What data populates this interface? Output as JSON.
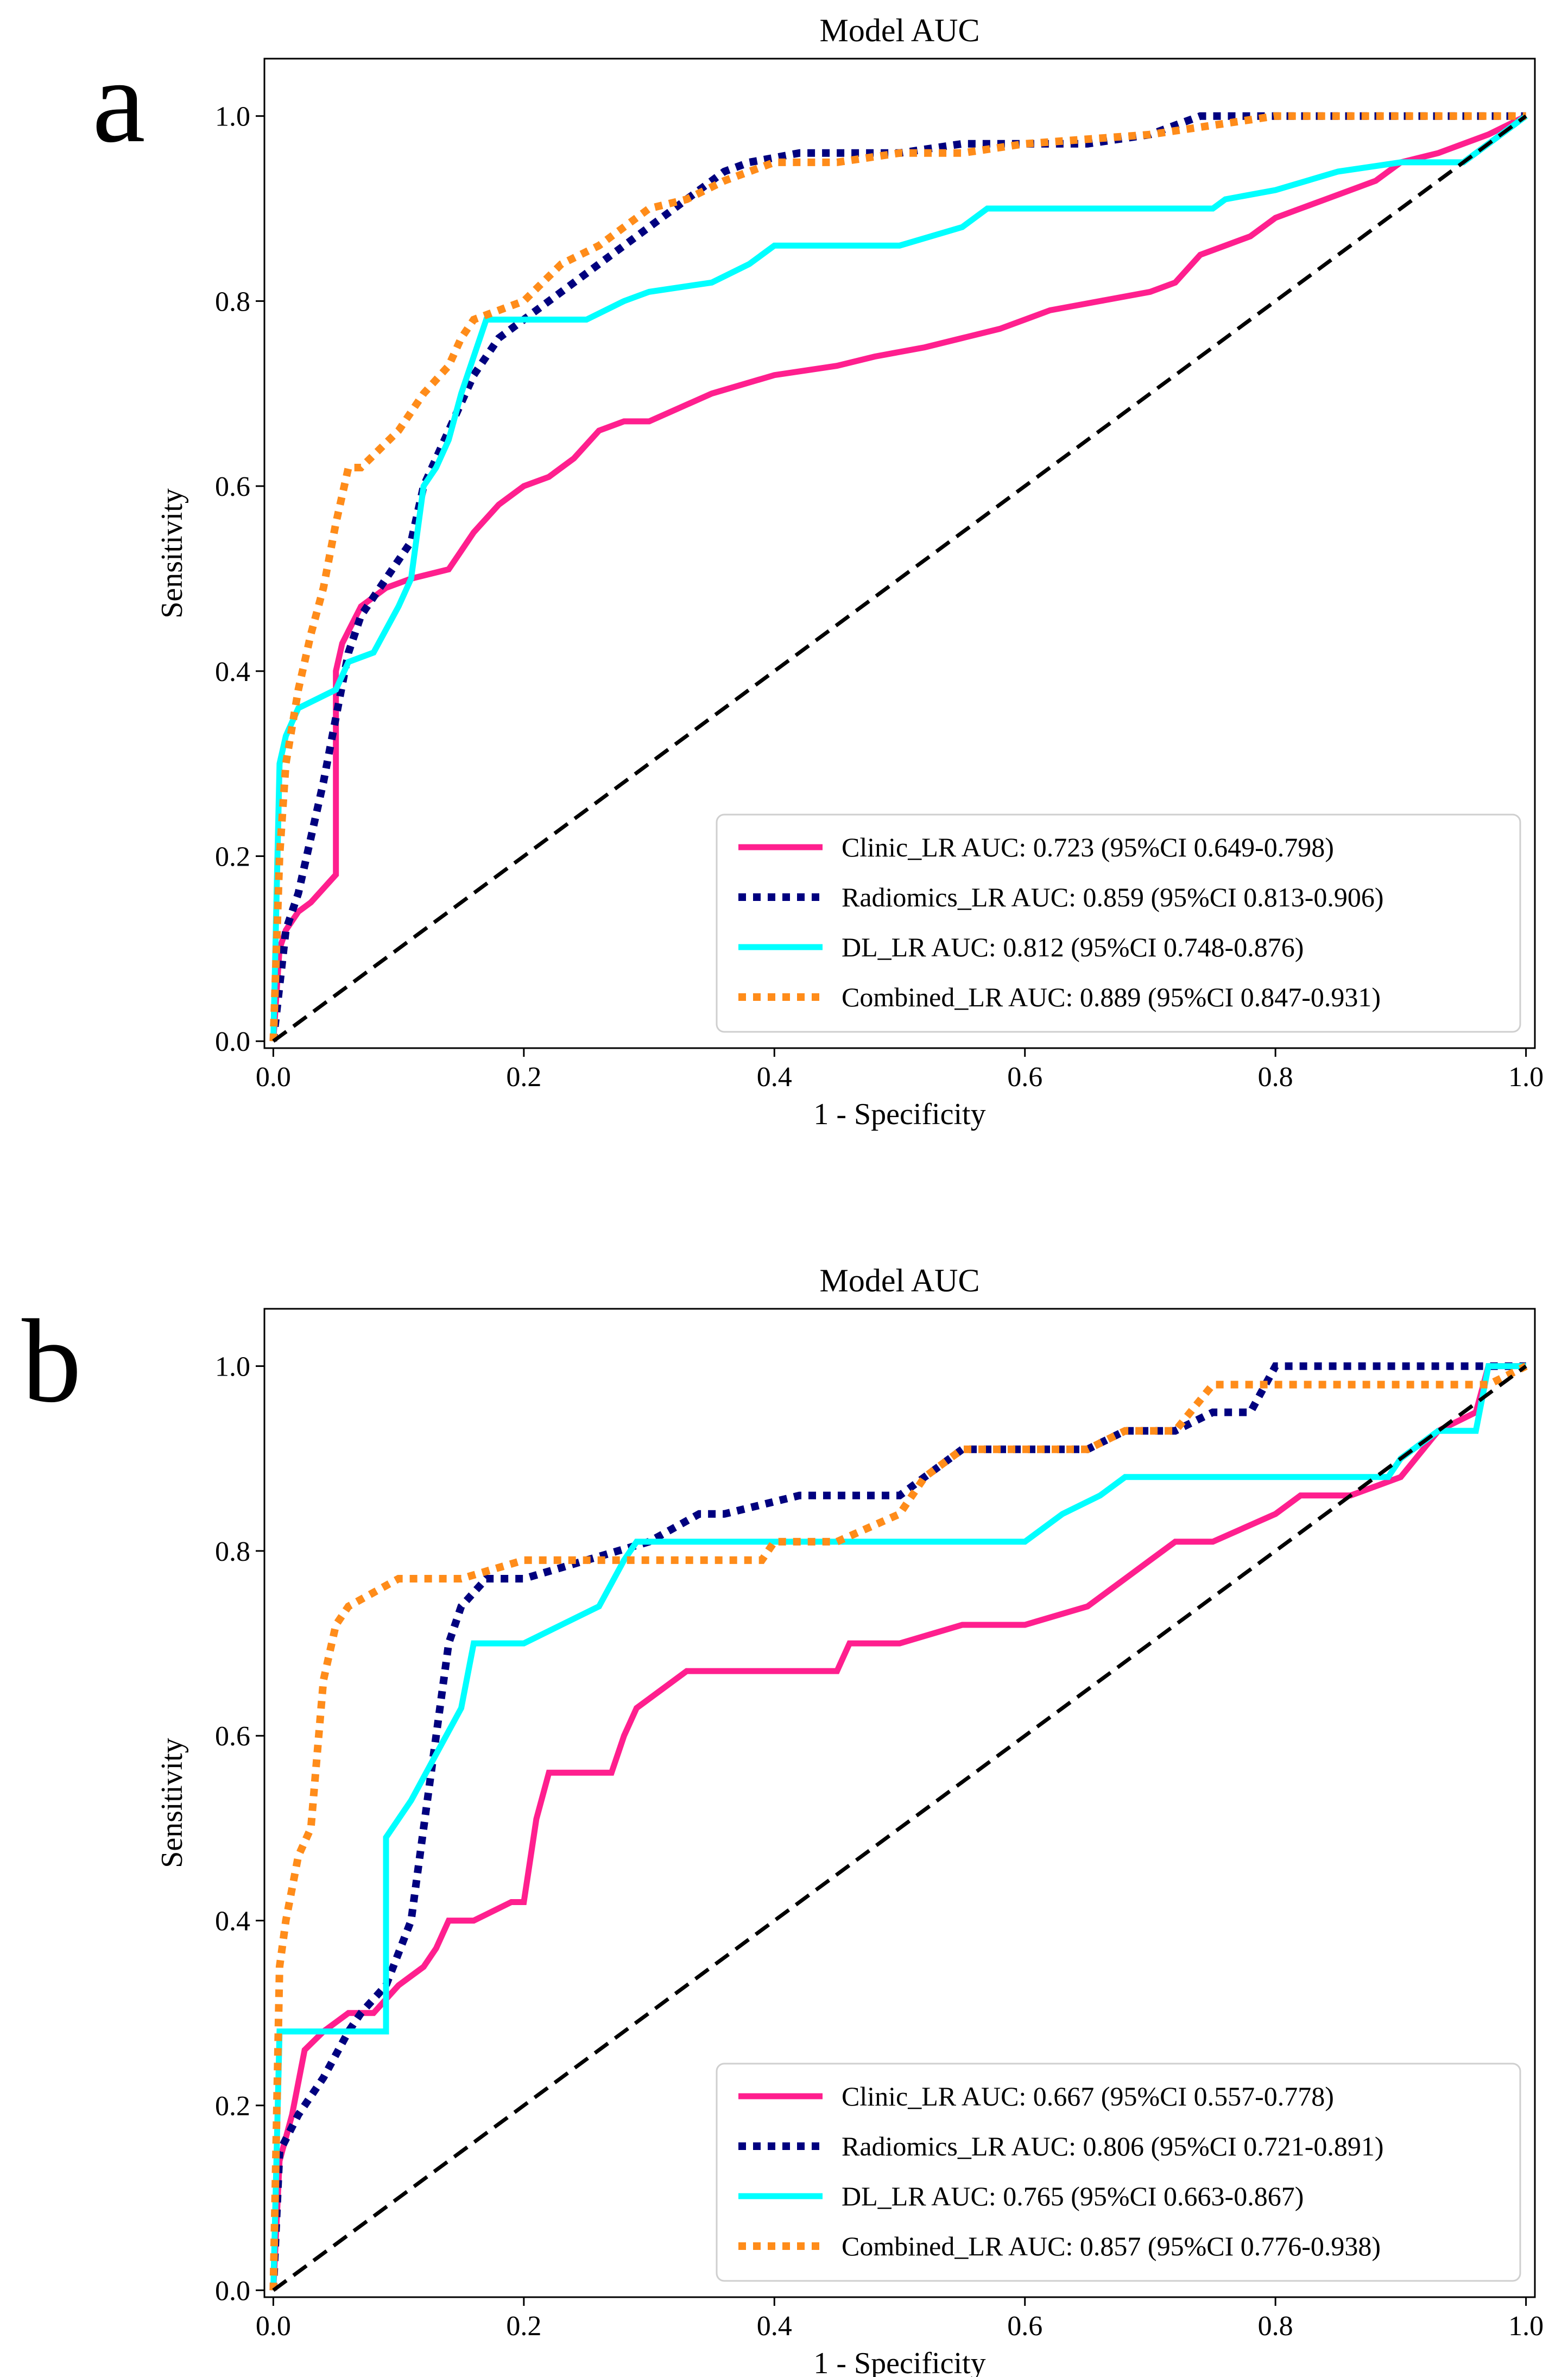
{
  "chart_data": [
    {
      "panel_label": "a",
      "type": "line",
      "title": "Model AUC",
      "xlabel": "1 - Specificity",
      "ylabel": "Sensitivity",
      "xlim": [
        0.0,
        1.0
      ],
      "ylim": [
        0.0,
        1.0
      ],
      "xticks": [
        "0.0",
        "0.2",
        "0.4",
        "0.6",
        "0.8",
        "1.0"
      ],
      "yticks": [
        "0.0",
        "0.2",
        "0.4",
        "0.6",
        "0.8",
        "1.0"
      ],
      "grid": false,
      "legend_position": "lower-right",
      "series": [
        {
          "name": "Clinic_LR AUC: 0.723 (95%CI 0.649-0.798)",
          "color": "#ff1f8e",
          "style": "solid",
          "x": [
            0,
            0.005,
            0.01,
            0.02,
            0.03,
            0.05,
            0.05,
            0.055,
            0.07,
            0.09,
            0.11,
            0.14,
            0.15,
            0.16,
            0.18,
            0.2,
            0.22,
            0.24,
            0.26,
            0.28,
            0.3,
            0.35,
            0.4,
            0.45,
            0.48,
            0.52,
            0.55,
            0.58,
            0.62,
            0.66,
            0.7,
            0.72,
            0.74,
            0.76,
            0.78,
            0.8,
            0.82,
            0.84,
            0.86,
            0.88,
            0.9,
            0.93,
            0.97,
            1.0
          ],
          "y": [
            0,
            0.1,
            0.12,
            0.14,
            0.15,
            0.18,
            0.4,
            0.43,
            0.47,
            0.49,
            0.5,
            0.51,
            0.53,
            0.55,
            0.58,
            0.6,
            0.61,
            0.63,
            0.66,
            0.67,
            0.67,
            0.7,
            0.72,
            0.73,
            0.74,
            0.75,
            0.76,
            0.77,
            0.79,
            0.8,
            0.81,
            0.82,
            0.85,
            0.86,
            0.87,
            0.89,
            0.9,
            0.91,
            0.92,
            0.93,
            0.95,
            0.96,
            0.98,
            1.0
          ]
        },
        {
          "name": "Radiomics_LR AUC: 0.859 (95%CI 0.813-0.906)",
          "color": "#00007f",
          "style": "dotted",
          "x": [
            0,
            0.01,
            0.02,
            0.03,
            0.04,
            0.05,
            0.06,
            0.07,
            0.09,
            0.11,
            0.12,
            0.14,
            0.16,
            0.18,
            0.2,
            0.22,
            0.24,
            0.26,
            0.28,
            0.3,
            0.33,
            0.36,
            0.38,
            0.42,
            0.45,
            0.5,
            0.55,
            0.6,
            0.65,
            0.7,
            0.74,
            0.8,
            0.85,
            0.9,
            1.0
          ],
          "y": [
            0,
            0.12,
            0.16,
            0.22,
            0.28,
            0.35,
            0.42,
            0.46,
            0.5,
            0.54,
            0.6,
            0.66,
            0.72,
            0.76,
            0.78,
            0.8,
            0.82,
            0.84,
            0.86,
            0.88,
            0.91,
            0.94,
            0.95,
            0.96,
            0.96,
            0.96,
            0.97,
            0.97,
            0.97,
            0.98,
            1.0,
            1.0,
            1.0,
            1.0,
            1.0
          ]
        },
        {
          "name": "DL_LR AUC: 0.812 (95%CI 0.748-0.876)",
          "color": "#00ffff",
          "style": "solid",
          "x": [
            0,
            0.005,
            0.01,
            0.02,
            0.05,
            0.06,
            0.08,
            0.1,
            0.11,
            0.12,
            0.13,
            0.14,
            0.15,
            0.16,
            0.17,
            0.18,
            0.25,
            0.28,
            0.3,
            0.35,
            0.38,
            0.4,
            0.5,
            0.55,
            0.57,
            0.6,
            0.65,
            0.7,
            0.75,
            0.76,
            0.8,
            0.85,
            0.9,
            0.95,
            1.0
          ],
          "y": [
            0,
            0.3,
            0.33,
            0.36,
            0.38,
            0.41,
            0.42,
            0.47,
            0.5,
            0.6,
            0.62,
            0.65,
            0.7,
            0.74,
            0.78,
            0.78,
            0.78,
            0.8,
            0.81,
            0.82,
            0.84,
            0.86,
            0.86,
            0.88,
            0.9,
            0.9,
            0.9,
            0.9,
            0.9,
            0.91,
            0.92,
            0.94,
            0.95,
            0.95,
            1.0
          ]
        },
        {
          "name": "Combined_LR AUC: 0.889 (95%CI 0.847-0.931)",
          "color": "#ff8c1a",
          "style": "dotted",
          "x": [
            0,
            0.005,
            0.01,
            0.02,
            0.03,
            0.04,
            0.05,
            0.06,
            0.07,
            0.1,
            0.12,
            0.14,
            0.15,
            0.16,
            0.18,
            0.2,
            0.23,
            0.26,
            0.28,
            0.3,
            0.33,
            0.36,
            0.4,
            0.45,
            0.5,
            0.55,
            0.6,
            0.7,
            0.8,
            0.9,
            1.0
          ],
          "y": [
            0,
            0.2,
            0.3,
            0.38,
            0.44,
            0.49,
            0.56,
            0.62,
            0.62,
            0.66,
            0.7,
            0.73,
            0.76,
            0.78,
            0.79,
            0.8,
            0.84,
            0.86,
            0.88,
            0.9,
            0.91,
            0.93,
            0.95,
            0.95,
            0.96,
            0.96,
            0.97,
            0.98,
            1.0,
            1.0,
            1.0
          ]
        },
        {
          "name": "chance",
          "color": "#000000",
          "style": "dashed",
          "legend": false,
          "x": [
            0,
            1
          ],
          "y": [
            0,
            1
          ]
        }
      ]
    },
    {
      "panel_label": "b",
      "type": "line",
      "title": "Model AUC",
      "xlabel": "1 - Specificity",
      "ylabel": "Sensitivity",
      "xlim": [
        0.0,
        1.0
      ],
      "ylim": [
        0.0,
        1.0
      ],
      "xticks": [
        "0.0",
        "0.2",
        "0.4",
        "0.6",
        "0.8",
        "1.0"
      ],
      "yticks": [
        "0.0",
        "0.2",
        "0.4",
        "0.6",
        "0.8",
        "1.0"
      ],
      "grid": false,
      "legend_position": "lower-right",
      "series": [
        {
          "name": "Clinic_LR AUC: 0.667 (95%CI 0.557-0.778)",
          "color": "#ff1f8e",
          "style": "solid",
          "x": [
            0,
            0.005,
            0.015,
            0.025,
            0.04,
            0.06,
            0.08,
            0.1,
            0.12,
            0.13,
            0.14,
            0.16,
            0.19,
            0.2,
            0.21,
            0.22,
            0.27,
            0.28,
            0.29,
            0.31,
            0.33,
            0.35,
            0.4,
            0.45,
            0.46,
            0.5,
            0.55,
            0.6,
            0.65,
            0.68,
            0.7,
            0.72,
            0.75,
            0.8,
            0.82,
            0.86,
            0.9,
            0.93,
            0.96,
            0.97,
            1.0
          ],
          "y": [
            0,
            0.14,
            0.19,
            0.26,
            0.28,
            0.3,
            0.3,
            0.33,
            0.35,
            0.37,
            0.4,
            0.4,
            0.42,
            0.42,
            0.51,
            0.56,
            0.56,
            0.6,
            0.63,
            0.65,
            0.67,
            0.67,
            0.67,
            0.67,
            0.7,
            0.7,
            0.72,
            0.72,
            0.74,
            0.77,
            0.79,
            0.81,
            0.81,
            0.84,
            0.86,
            0.86,
            0.88,
            0.93,
            0.95,
            1.0,
            1.0
          ]
        },
        {
          "name": "Radiomics_LR AUC: 0.806 (95%CI 0.721-0.891)",
          "color": "#00007f",
          "style": "dotted",
          "x": [
            0,
            0.005,
            0.02,
            0.04,
            0.06,
            0.07,
            0.09,
            0.11,
            0.12,
            0.13,
            0.14,
            0.15,
            0.17,
            0.2,
            0.3,
            0.34,
            0.36,
            0.42,
            0.5,
            0.52,
            0.55,
            0.65,
            0.68,
            0.72,
            0.75,
            0.78,
            0.8,
            0.9,
            1.0
          ],
          "y": [
            0,
            0.15,
            0.19,
            0.23,
            0.28,
            0.3,
            0.33,
            0.4,
            0.5,
            0.6,
            0.7,
            0.74,
            0.77,
            0.77,
            0.81,
            0.84,
            0.84,
            0.86,
            0.86,
            0.88,
            0.91,
            0.91,
            0.93,
            0.93,
            0.95,
            0.95,
            1.0,
            1.0,
            1.0
          ]
        },
        {
          "name": "DL_LR AUC: 0.765 (95%CI 0.663-0.867)",
          "color": "#00ffff",
          "style": "solid",
          "x": [
            0,
            0.005,
            0.09,
            0.09,
            0.11,
            0.13,
            0.15,
            0.16,
            0.17,
            0.2,
            0.23,
            0.26,
            0.28,
            0.29,
            0.3,
            0.35,
            0.45,
            0.5,
            0.55,
            0.6,
            0.63,
            0.66,
            0.68,
            0.75,
            0.8,
            0.85,
            0.89,
            0.9,
            0.93,
            0.96,
            0.97,
            1.0
          ],
          "y": [
            0,
            0.28,
            0.28,
            0.49,
            0.53,
            0.58,
            0.63,
            0.7,
            0.7,
            0.7,
            0.72,
            0.74,
            0.79,
            0.81,
            0.81,
            0.81,
            0.81,
            0.81,
            0.81,
            0.81,
            0.84,
            0.86,
            0.88,
            0.88,
            0.88,
            0.88,
            0.88,
            0.9,
            0.93,
            0.93,
            1.0,
            1.0
          ]
        },
        {
          "name": "Combined_LR AUC: 0.857 (95%CI 0.776-0.938)",
          "color": "#ff8c1a",
          "style": "dotted",
          "x": [
            0,
            0.005,
            0.01,
            0.02,
            0.03,
            0.04,
            0.05,
            0.06,
            0.1,
            0.15,
            0.2,
            0.3,
            0.39,
            0.4,
            0.45,
            0.5,
            0.52,
            0.55,
            0.6,
            0.65,
            0.68,
            0.72,
            0.75,
            0.8,
            0.9,
            0.97,
            1.0
          ],
          "y": [
            0,
            0.35,
            0.4,
            0.47,
            0.5,
            0.66,
            0.72,
            0.74,
            0.77,
            0.77,
            0.79,
            0.79,
            0.79,
            0.81,
            0.81,
            0.84,
            0.88,
            0.91,
            0.91,
            0.91,
            0.93,
            0.93,
            0.98,
            0.98,
            0.98,
            0.98,
            1.0
          ]
        },
        {
          "name": "chance",
          "color": "#000000",
          "style": "dashed",
          "legend": false,
          "x": [
            0,
            1
          ],
          "y": [
            0,
            1
          ]
        }
      ]
    }
  ]
}
